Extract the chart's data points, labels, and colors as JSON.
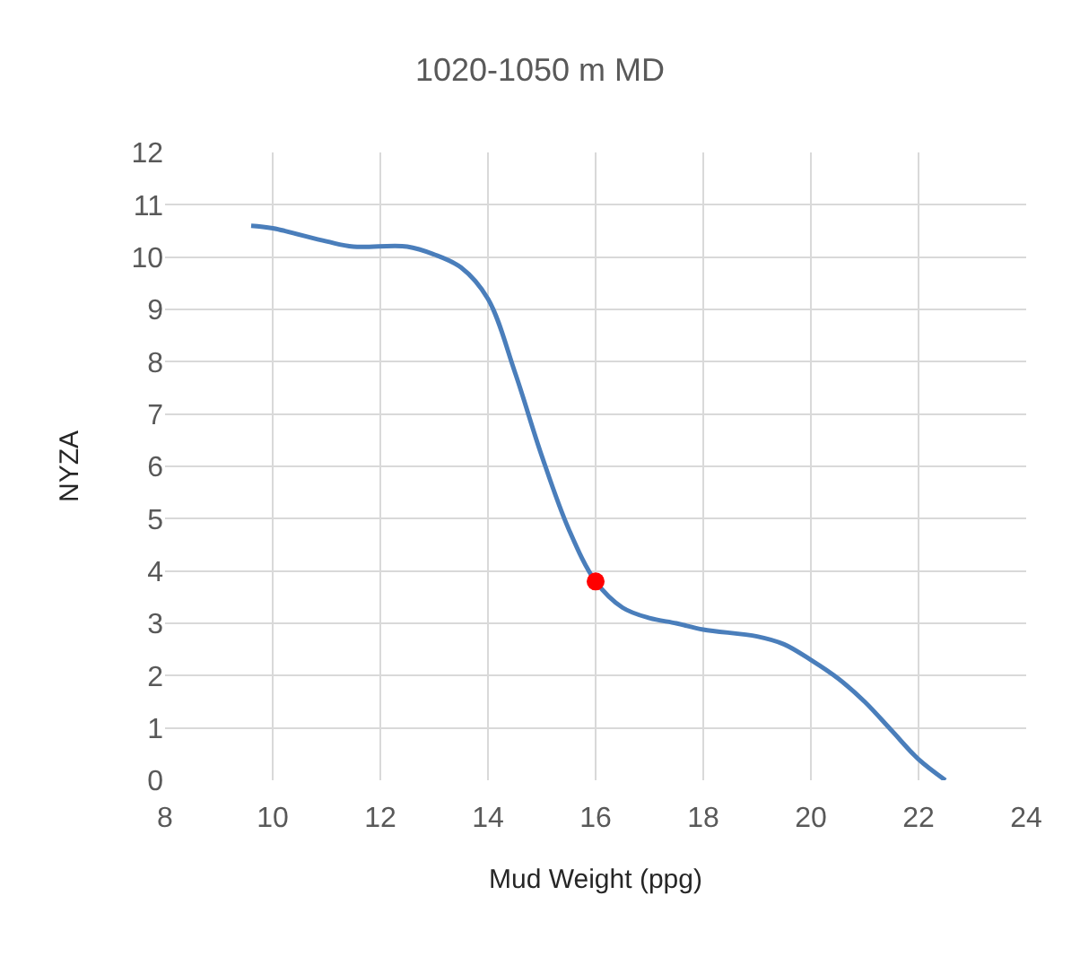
{
  "chart_data": {
    "type": "line",
    "title": "1020-1050 m MD",
    "xlabel": "Mud Weight (ppg)",
    "ylabel": "NYZA",
    "xlim": [
      8,
      24
    ],
    "xticks": [
      8,
      10,
      12,
      14,
      16,
      18,
      20,
      22,
      24
    ],
    "ylim": [
      0,
      12
    ],
    "yticks": [
      0,
      1,
      2,
      3,
      4,
      5,
      6,
      7,
      8,
      9,
      10,
      11,
      12
    ],
    "grid": true,
    "series": [
      {
        "color": "#4a7ebb",
        "marker": "none",
        "x": [
          9.6,
          10,
          11,
          11.5,
          12.5,
          13,
          13.5,
          14,
          14.5,
          15,
          15.5,
          16,
          16.5,
          17,
          17.5,
          18,
          19,
          19.5,
          20,
          20.5,
          21,
          21.5,
          22,
          22.5
        ],
        "values": [
          10.6,
          10.55,
          10.3,
          10.2,
          10.2,
          10.05,
          9.8,
          9.2,
          7.8,
          6.2,
          4.8,
          3.8,
          3.3,
          3.1,
          3.0,
          2.88,
          2.75,
          2.6,
          2.3,
          1.95,
          1.5,
          0.95,
          0.4,
          0
        ]
      },
      {
        "type": "scatter",
        "color": "#ff0000",
        "marker": "circle",
        "x": [
          16
        ],
        "values": [
          3.8
        ]
      }
    ]
  }
}
